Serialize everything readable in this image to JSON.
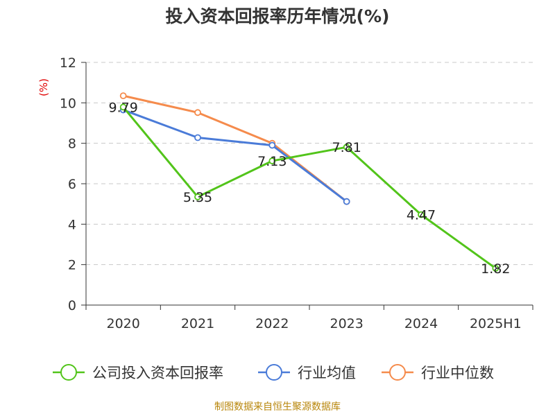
{
  "chart_data": {
    "type": "line",
    "title": "投入资本回报率历年情况(%)",
    "ylabel": "(%)",
    "xlabel": "",
    "categories": [
      "2020",
      "2021",
      "2022",
      "2023",
      "2024",
      "2025H1"
    ],
    "ylim": [
      0,
      12
    ],
    "yticks": [
      "0",
      "2",
      "4",
      "6",
      "8",
      "10",
      "12"
    ],
    "grid": true,
    "legend_position": "bottom",
    "series": [
      {
        "name": "公司投入资本回报率",
        "color": "#52c41a",
        "values": [
          9.79,
          5.35,
          7.13,
          7.81,
          4.47,
          1.82
        ],
        "labels": [
          "9.79",
          "5.35",
          "7.13",
          "7.81",
          "4.47",
          "1.82"
        ]
      },
      {
        "name": "行业均值",
        "color": "#4a7bd8",
        "values": [
          9.65,
          8.28,
          7.9,
          5.12,
          null,
          null
        ]
      },
      {
        "name": "行业中位数",
        "color": "#f58b4c",
        "values": [
          10.35,
          9.52,
          8.0,
          5.12,
          null,
          null
        ]
      }
    ]
  },
  "footer": {
    "source": "制图数据来自恒生聚源数据库"
  }
}
